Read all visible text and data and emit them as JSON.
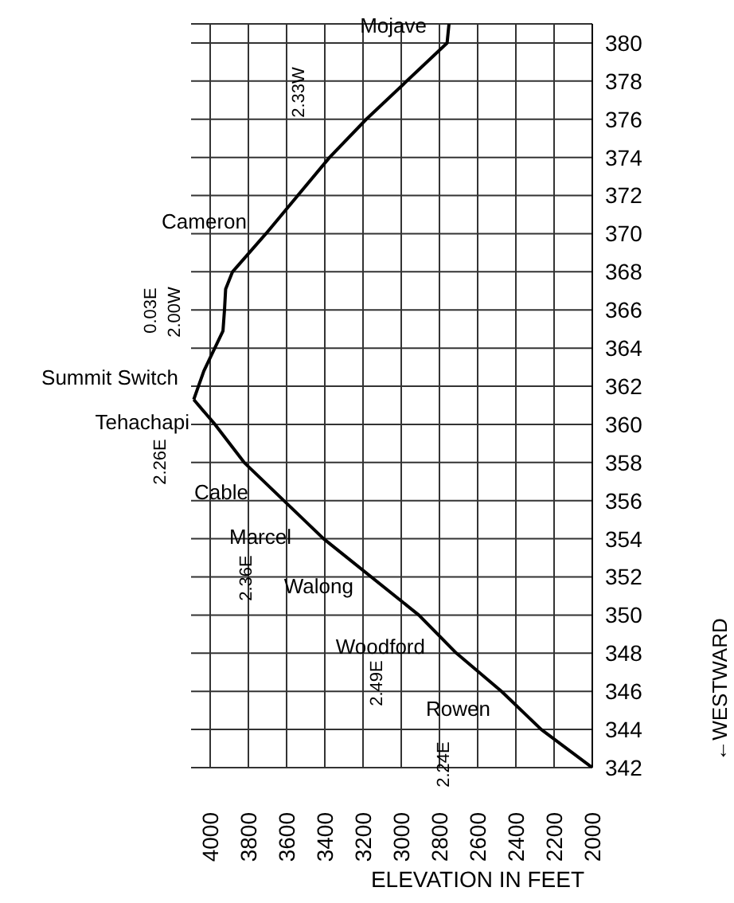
{
  "chart_data": {
    "type": "line",
    "xlabel": "ELEVATION IN FEET",
    "series": [
      {
        "color": "#000000",
        "x": [
          2750,
          2760,
          3183,
          3375,
          3708,
          3883,
          3919,
          3925,
          3933,
          4033,
          4086
        ],
        "values": [
          381,
          380,
          376,
          374,
          370,
          368,
          367.1,
          366,
          364.9,
          362.8,
          361.3
        ]
      },
      {
        "color": "#000000",
        "x": [
          4086,
          3975,
          3822,
          3406,
          2908,
          2711,
          2475,
          2267,
          2000
        ],
        "values": [
          361.3,
          360,
          358,
          354,
          350,
          348,
          346,
          344,
          342
        ]
      }
    ],
    "xlim": [
      4100,
      2000
    ],
    "ylim": [
      342,
      381
    ],
    "xticks": [
      4000,
      3800,
      3600,
      3400,
      3200,
      3000,
      2800,
      2600,
      2400,
      2200,
      2000
    ],
    "yticks": [
      342,
      344,
      346,
      348,
      350,
      352,
      354,
      356,
      358,
      360,
      362,
      364,
      366,
      368,
      370,
      372,
      374,
      376,
      378,
      380
    ],
    "grid": true,
    "legend": false,
    "marker": "none",
    "line_style": "solid",
    "annotations": [
      "Mojave",
      "Cameron",
      "Summit Switch",
      "Tehachapi",
      "Cable",
      "Marcel",
      "Walong",
      "Woodford",
      "Rowen",
      "2.33W",
      "0.03E",
      "2.00W",
      "2.26E",
      "2.36E",
      "2.49E",
      "2.24E",
      "←WESTWARD"
    ]
  }
}
